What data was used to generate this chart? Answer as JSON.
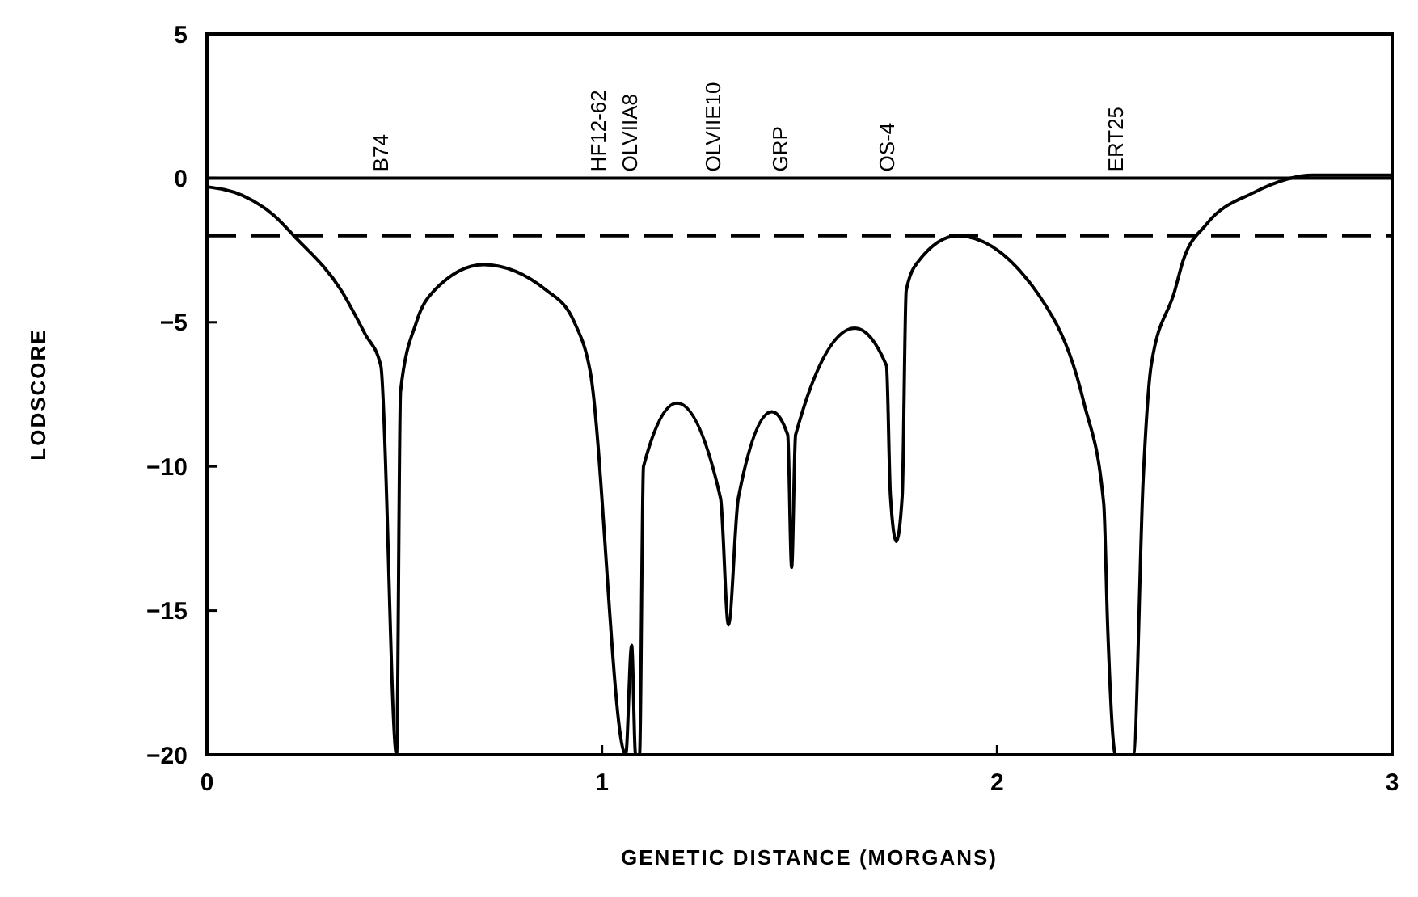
{
  "chart_data": {
    "type": "line",
    "xlabel": "GENETIC DISTANCE (MORGANS)",
    "ylabel": "LODSCORE",
    "xlim": [
      0,
      3
    ],
    "xticks": [
      0,
      1,
      2,
      3
    ],
    "ylim": [
      -20,
      5
    ],
    "yticks": [
      5,
      0,
      -5,
      -10,
      -15,
      -20
    ],
    "grid": false,
    "marker": "none",
    "line_style": "solid",
    "series": [
      {
        "color": "#000000",
        "x": [
          0,
          0.09,
          0.17,
          0.22,
          0.34,
          0.4,
          0.44,
          0.48,
          0.49,
          0.53,
          0.575,
          0.7,
          0.86,
          0.93,
          0.97,
          1.06,
          1.075,
          1.085,
          1.095,
          1.105,
          1.19,
          1.3,
          1.32,
          1.345,
          1.43,
          1.47,
          1.48,
          1.49,
          1.64,
          1.72,
          1.73,
          1.745,
          1.76,
          1.77,
          1.8,
          1.9,
          2.14,
          2.22,
          2.27,
          2.28,
          2.3,
          2.345,
          2.37,
          2.39,
          2.45,
          2.47,
          2.53,
          2.65,
          2.8,
          3
        ],
        "values": [
          -0.3,
          -0.6,
          -1.3,
          -2,
          -3.9,
          -5.4,
          -6.5,
          -20,
          -7.4,
          -5,
          -3.9,
          -3,
          -3.9,
          -5,
          -6.7,
          -20,
          -16.2,
          -20,
          -20,
          -10,
          -7.8,
          -11.1,
          -15.5,
          -11.1,
          -8.1,
          -8.9,
          -13.5,
          -8.9,
          -5.2,
          -6.5,
          -11,
          -12.6,
          -11,
          -3.9,
          -2.9,
          -2,
          -4.8,
          -7.8,
          -11.3,
          -15.6,
          -20,
          -20,
          -10.4,
          -6.5,
          -3.9,
          -2.9,
          -1.6,
          -0.5,
          0.1,
          0.1
        ]
      }
    ],
    "ref_lines": [
      {
        "axis": "y",
        "value": 0,
        "line_style": "solid",
        "color": "#000000"
      },
      {
        "axis": "y",
        "value": -2,
        "line_style": "dashed",
        "color": "#000000"
      }
    ],
    "annotations": [
      {
        "text": "B74",
        "x": 0.44,
        "y": 0
      },
      {
        "text": "HF12-62",
        "x": 0.99,
        "y": 0
      },
      {
        "text": "OLVIIA8",
        "x": 1.07,
        "y": 0
      },
      {
        "text": "OLVIIE10",
        "x": 1.28,
        "y": 0
      },
      {
        "text": "GRP",
        "x": 1.45,
        "y": 0
      },
      {
        "text": "OS-4",
        "x": 1.72,
        "y": 0
      },
      {
        "text": "ERT25",
        "x": 2.3,
        "y": 0
      }
    ]
  }
}
